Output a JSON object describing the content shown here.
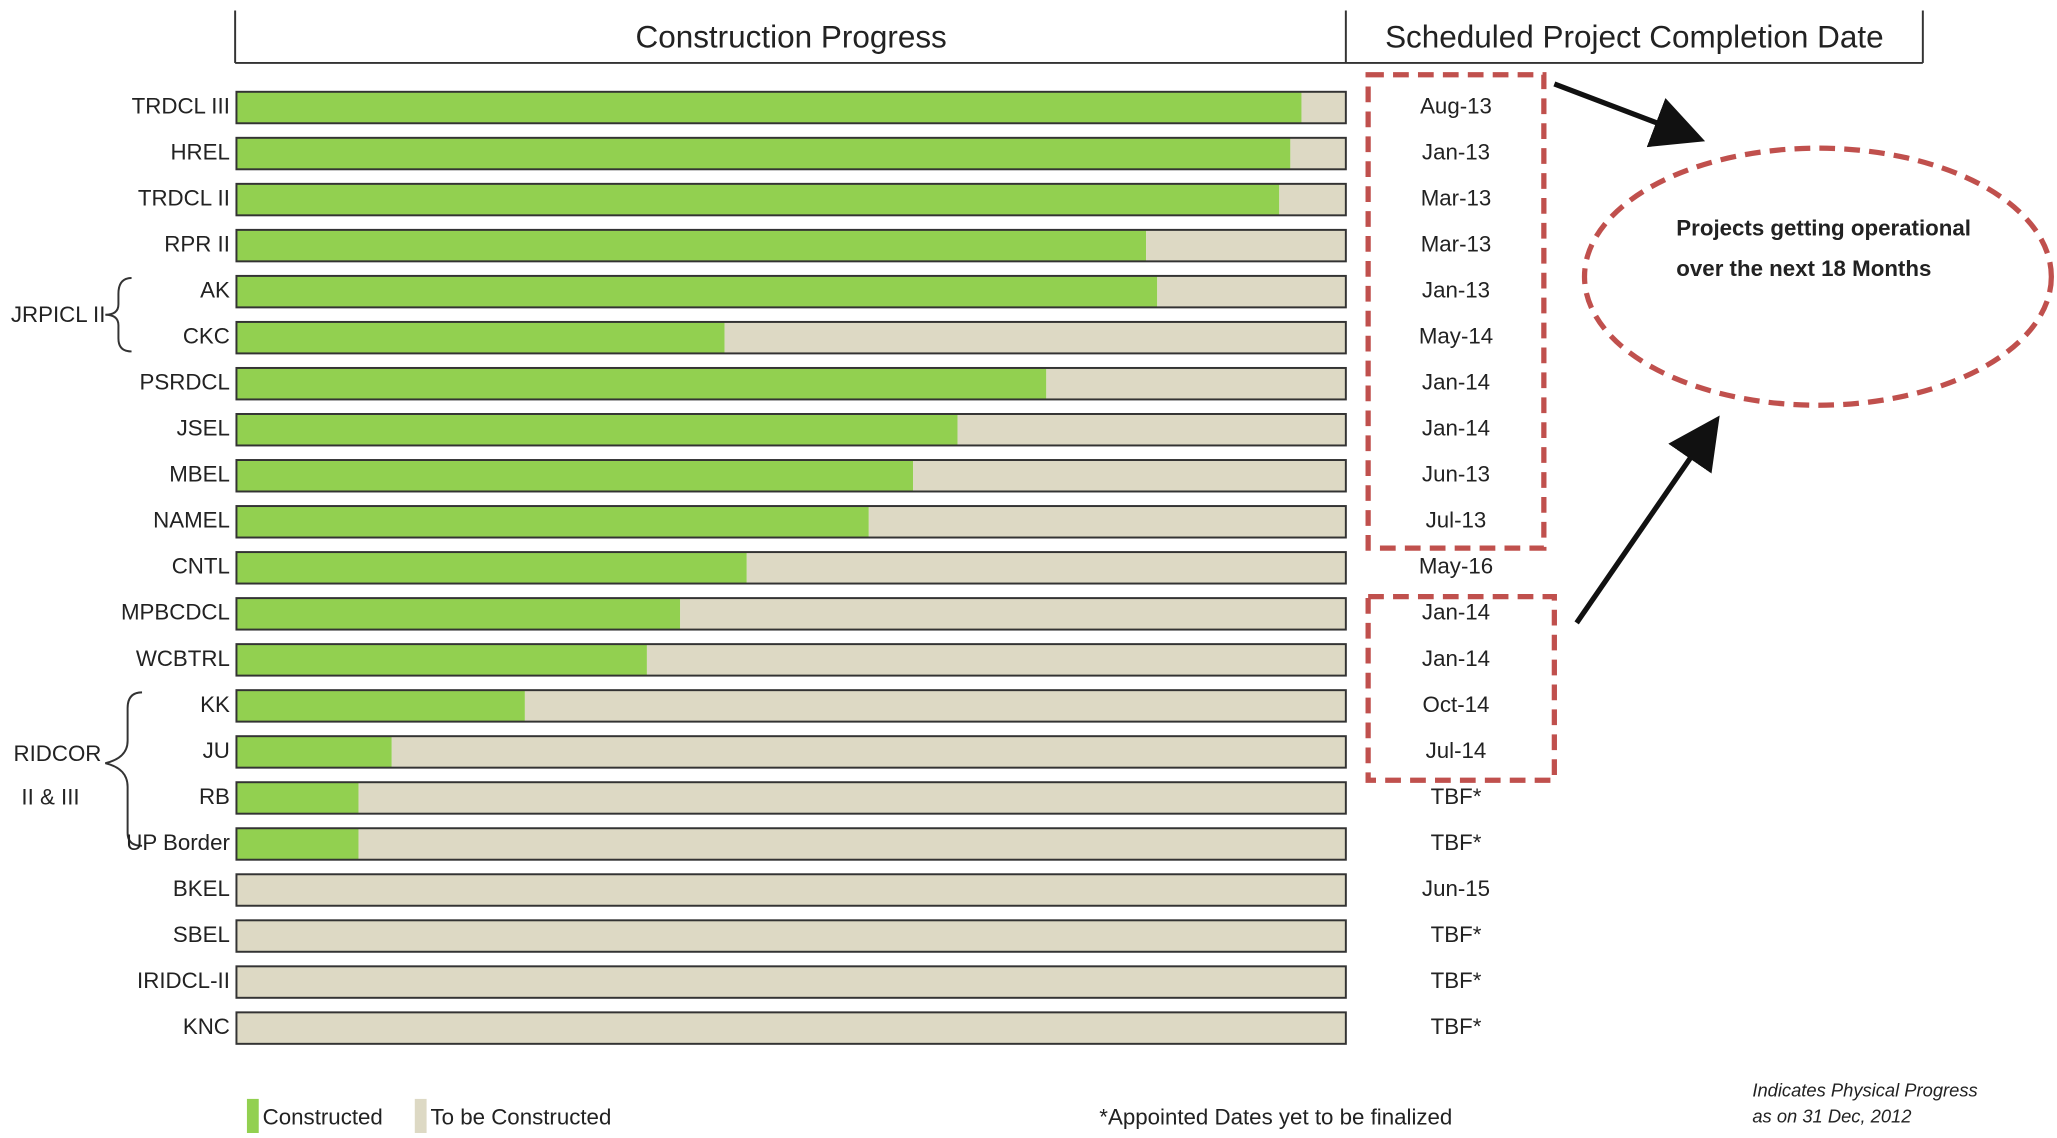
{
  "chart_data": {
    "type": "stacked_barh",
    "title": "Construction Progress",
    "dates_header": "Scheduled Project Completion Date",
    "categories": [
      "TRDCL III",
      "HREL",
      "TRDCL II",
      "RPR II",
      "AK",
      "CKC",
      "PSRDCL",
      "JSEL",
      "MBEL",
      "NAMEL",
      "CNTL",
      "MPBCDCL",
      "WCBTRL",
      "KK",
      "JU",
      "RB",
      "UP Border",
      "BKEL",
      "SBEL",
      "IRIDCL-II",
      "KNC"
    ],
    "series": [
      {
        "name": "Constructed",
        "color": "#92d050",
        "values": [
          96,
          95,
          94,
          82,
          83,
          44,
          73,
          65,
          61,
          57,
          46,
          40,
          37,
          26,
          14,
          11,
          11,
          0,
          0,
          0,
          0
        ]
      },
      {
        "name": "To be Constructed",
        "color": "#ddd9c4",
        "values": [
          4,
          5,
          6,
          18,
          17,
          56,
          27,
          35,
          39,
          43,
          54,
          60,
          63,
          74,
          86,
          89,
          89,
          100,
          100,
          100,
          100
        ]
      }
    ],
    "xlim": [
      0,
      100
    ],
    "completion_dates": [
      "Aug-13",
      "Jan-13",
      "Mar-13",
      "Mar-13",
      "Jan-13",
      "May-14",
      "Jan-14",
      "Jan-14",
      "Jun-13",
      "Jul-13",
      "May-16",
      "Jan-14",
      "Jan-14",
      "Oct-14",
      "Jul-14",
      "TBF*",
      "TBF*",
      "Jun-15",
      "TBF*",
      "TBF*",
      "TBF*"
    ],
    "group_labels": [
      "JRPICL II",
      "RIDCOR",
      "II & III"
    ],
    "annotation": [
      "Projects getting operational",
      "over the next 18 Months"
    ],
    "footnote": "*Appointed Dates yet to be finalized",
    "note": [
      "Indicates Physical Progress",
      "as on 31 Dec, 2012"
    ]
  }
}
